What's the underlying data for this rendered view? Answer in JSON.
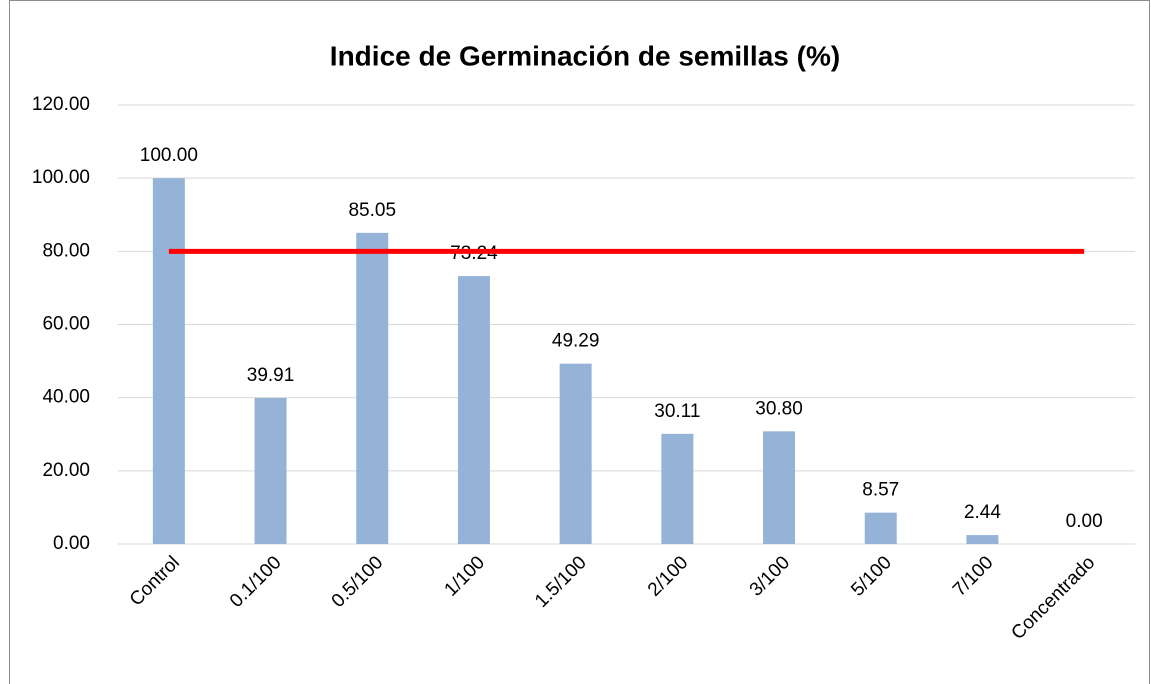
{
  "chart_data": {
    "type": "bar",
    "title": "Indice de Germinación de semillas (%)",
    "categories": [
      "Control",
      "0.1/100",
      "0.5/100",
      "1/100",
      "1.5/100",
      "2/100",
      "3/100",
      "5/100",
      "7/100",
      "Concentrado"
    ],
    "values": [
      100,
      39.91,
      85.05,
      73.24,
      49.29,
      30.11,
      30.8,
      8.57,
      2.44,
      0
    ],
    "value_labels": [
      "100.00",
      "39.91",
      "85.05",
      "73.24",
      "49.29",
      "30.11",
      "30.80",
      "8.57",
      "2.44",
      "0.00"
    ],
    "color": "#95b3d7",
    "ylim": [
      0,
      120
    ],
    "yticks": [
      {
        "value": 0,
        "label": "0.00"
      },
      {
        "value": 20,
        "label": "20.00"
      },
      {
        "value": 40,
        "label": "40.00"
      },
      {
        "value": 60,
        "label": "60.00"
      },
      {
        "value": 80,
        "label": "80.00"
      },
      {
        "value": 100,
        "label": "100.00"
      },
      {
        "value": 120,
        "label": "120.00"
      }
    ],
    "grid": true,
    "threshold": 80,
    "threshold_color": "#ff0000"
  }
}
